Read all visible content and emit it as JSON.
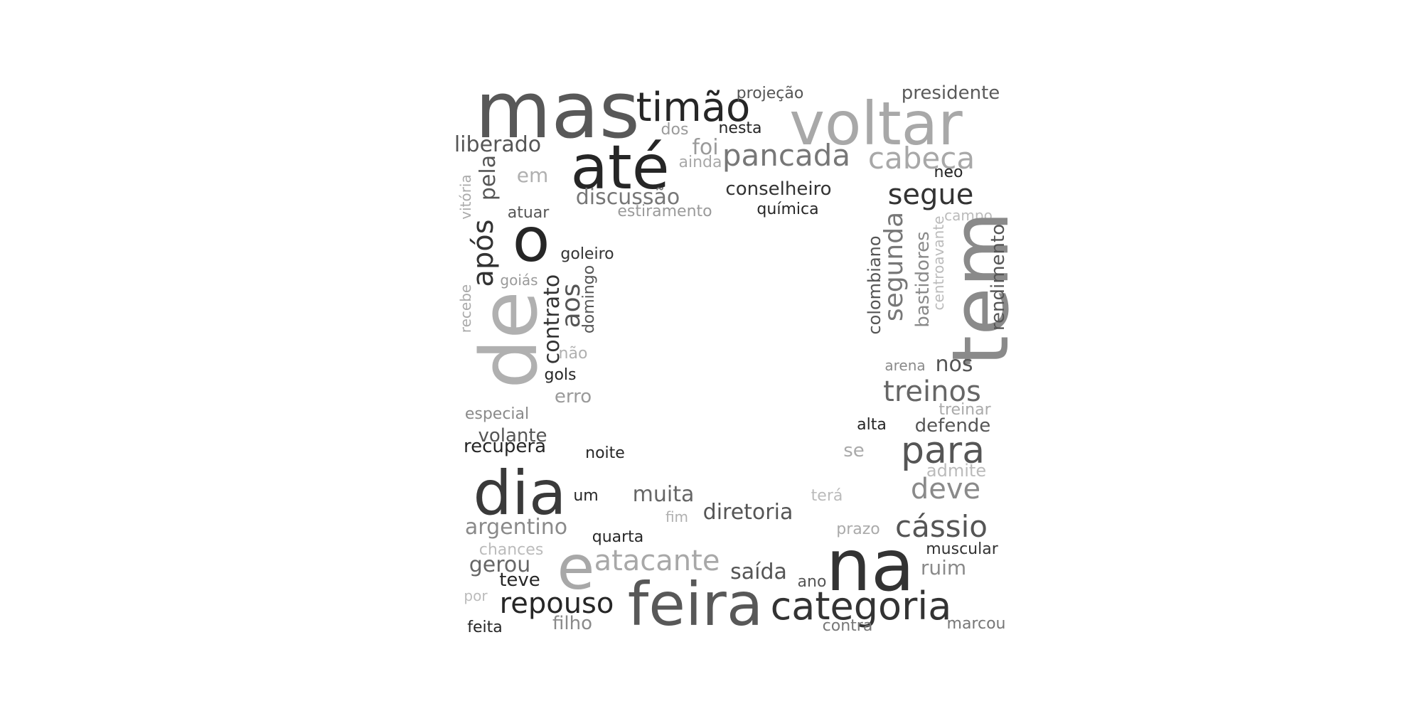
{
  "words": [
    {
      "text": "mas",
      "color": "#585858"
    },
    {
      "text": "voltar",
      "color": "#a8a8a8"
    },
    {
      "text": "timão",
      "color": "#262626"
    },
    {
      "text": "projeção",
      "color": "#555555"
    },
    {
      "text": "presidente",
      "color": "#5a5a5a"
    },
    {
      "text": "até",
      "color": "#262626"
    },
    {
      "text": "dos",
      "color": "#9a9a9a"
    },
    {
      "text": "nesta",
      "color": "#262626"
    },
    {
      "text": "liberado",
      "color": "#555555"
    },
    {
      "text": "foi",
      "color": "#9a9a9a"
    },
    {
      "text": "pancada",
      "color": "#777777"
    },
    {
      "text": "cabeça",
      "color": "#a8a8a8"
    },
    {
      "text": "ainda",
      "color": "#a8a8a8"
    },
    {
      "text": "neo",
      "color": "#262626"
    },
    {
      "text": "em",
      "color": "#b0b0b0"
    },
    {
      "text": "conselheiro",
      "color": "#333333"
    },
    {
      "text": "segue",
      "color": "#333333"
    },
    {
      "text": "discussão",
      "color": "#777777"
    },
    {
      "text": "vitória",
      "color": "#aaaaaa"
    },
    {
      "text": "pela",
      "color": "#555555"
    },
    {
      "text": "atuar",
      "color": "#555555"
    },
    {
      "text": "estiramento",
      "color": "#9a9a9a"
    },
    {
      "text": "química",
      "color": "#262626"
    },
    {
      "text": "campo",
      "color": "#bbbbbb"
    },
    {
      "text": "o",
      "color": "#262626"
    },
    {
      "text": "após",
      "color": "#333333"
    },
    {
      "text": "goleiro",
      "color": "#333333"
    },
    {
      "text": "segunda",
      "color": "#777777"
    },
    {
      "text": "colombiano",
      "color": "#555555"
    },
    {
      "text": "bastidores",
      "color": "#8a8a8a"
    },
    {
      "text": "centroavante",
      "color": "#bbbbbb"
    },
    {
      "text": "tem",
      "color": "#8a8a8a"
    },
    {
      "text": "rendimento",
      "color": "#555555"
    },
    {
      "text": "goiás",
      "color": "#9a9a9a"
    },
    {
      "text": "domingo",
      "color": "#555555"
    },
    {
      "text": "aos",
      "color": "#555555"
    },
    {
      "text": "recebe",
      "color": "#aaaaaa"
    },
    {
      "text": "contrato",
      "color": "#333333"
    },
    {
      "text": "de",
      "color": "#b0b0b0"
    },
    {
      "text": "não",
      "color": "#b0b0b0"
    },
    {
      "text": "arena",
      "color": "#8a8a8a"
    },
    {
      "text": "nos",
      "color": "#555555"
    },
    {
      "text": "gols",
      "color": "#262626"
    },
    {
      "text": "treinos",
      "color": "#666666"
    },
    {
      "text": "erro",
      "color": "#9a9a9a"
    },
    {
      "text": "treinar",
      "color": "#aaaaaa"
    },
    {
      "text": "especial",
      "color": "#8a8a8a"
    },
    {
      "text": "alta",
      "color": "#262626"
    },
    {
      "text": "defende",
      "color": "#555555"
    },
    {
      "text": "volante",
      "color": "#555555"
    },
    {
      "text": "recupera",
      "color": "#262626"
    },
    {
      "text": "noite",
      "color": "#262626"
    },
    {
      "text": "se",
      "color": "#aaaaaa"
    },
    {
      "text": "para",
      "color": "#555555"
    },
    {
      "text": "admite",
      "color": "#bbbbbb"
    },
    {
      "text": "dia",
      "color": "#3a3a3a"
    },
    {
      "text": "um",
      "color": "#262626"
    },
    {
      "text": "muita",
      "color": "#666666"
    },
    {
      "text": "terá",
      "color": "#bbbbbb"
    },
    {
      "text": "deve",
      "color": "#8a8a8a"
    },
    {
      "text": "fim",
      "color": "#b0b0b0"
    },
    {
      "text": "diretoria",
      "color": "#555555"
    },
    {
      "text": "argentino",
      "color": "#8a8a8a"
    },
    {
      "text": "prazo",
      "color": "#aaaaaa"
    },
    {
      "text": "cássio",
      "color": "#555555"
    },
    {
      "text": "quarta",
      "color": "#262626"
    },
    {
      "text": "chances",
      "color": "#bbbbbb"
    },
    {
      "text": "e",
      "color": "#a8a8a8"
    },
    {
      "text": "atacante",
      "color": "#a8a8a8"
    },
    {
      "text": "na",
      "color": "#333333"
    },
    {
      "text": "muscular",
      "color": "#333333"
    },
    {
      "text": "gerou",
      "color": "#666666"
    },
    {
      "text": "saída",
      "color": "#555555"
    },
    {
      "text": "ruim",
      "color": "#8a8a8a"
    },
    {
      "text": "teve",
      "color": "#262626"
    },
    {
      "text": "ano",
      "color": "#555555"
    },
    {
      "text": "repouso",
      "color": "#262626"
    },
    {
      "text": "feira",
      "color": "#585858"
    },
    {
      "text": "categoria",
      "color": "#333333"
    },
    {
      "text": "por",
      "color": "#bbbbbb"
    },
    {
      "text": "feita",
      "color": "#262626"
    },
    {
      "text": "filho",
      "color": "#8a8a8a"
    },
    {
      "text": "contra",
      "color": "#777777"
    },
    {
      "text": "marcou",
      "color": "#777777"
    }
  ]
}
